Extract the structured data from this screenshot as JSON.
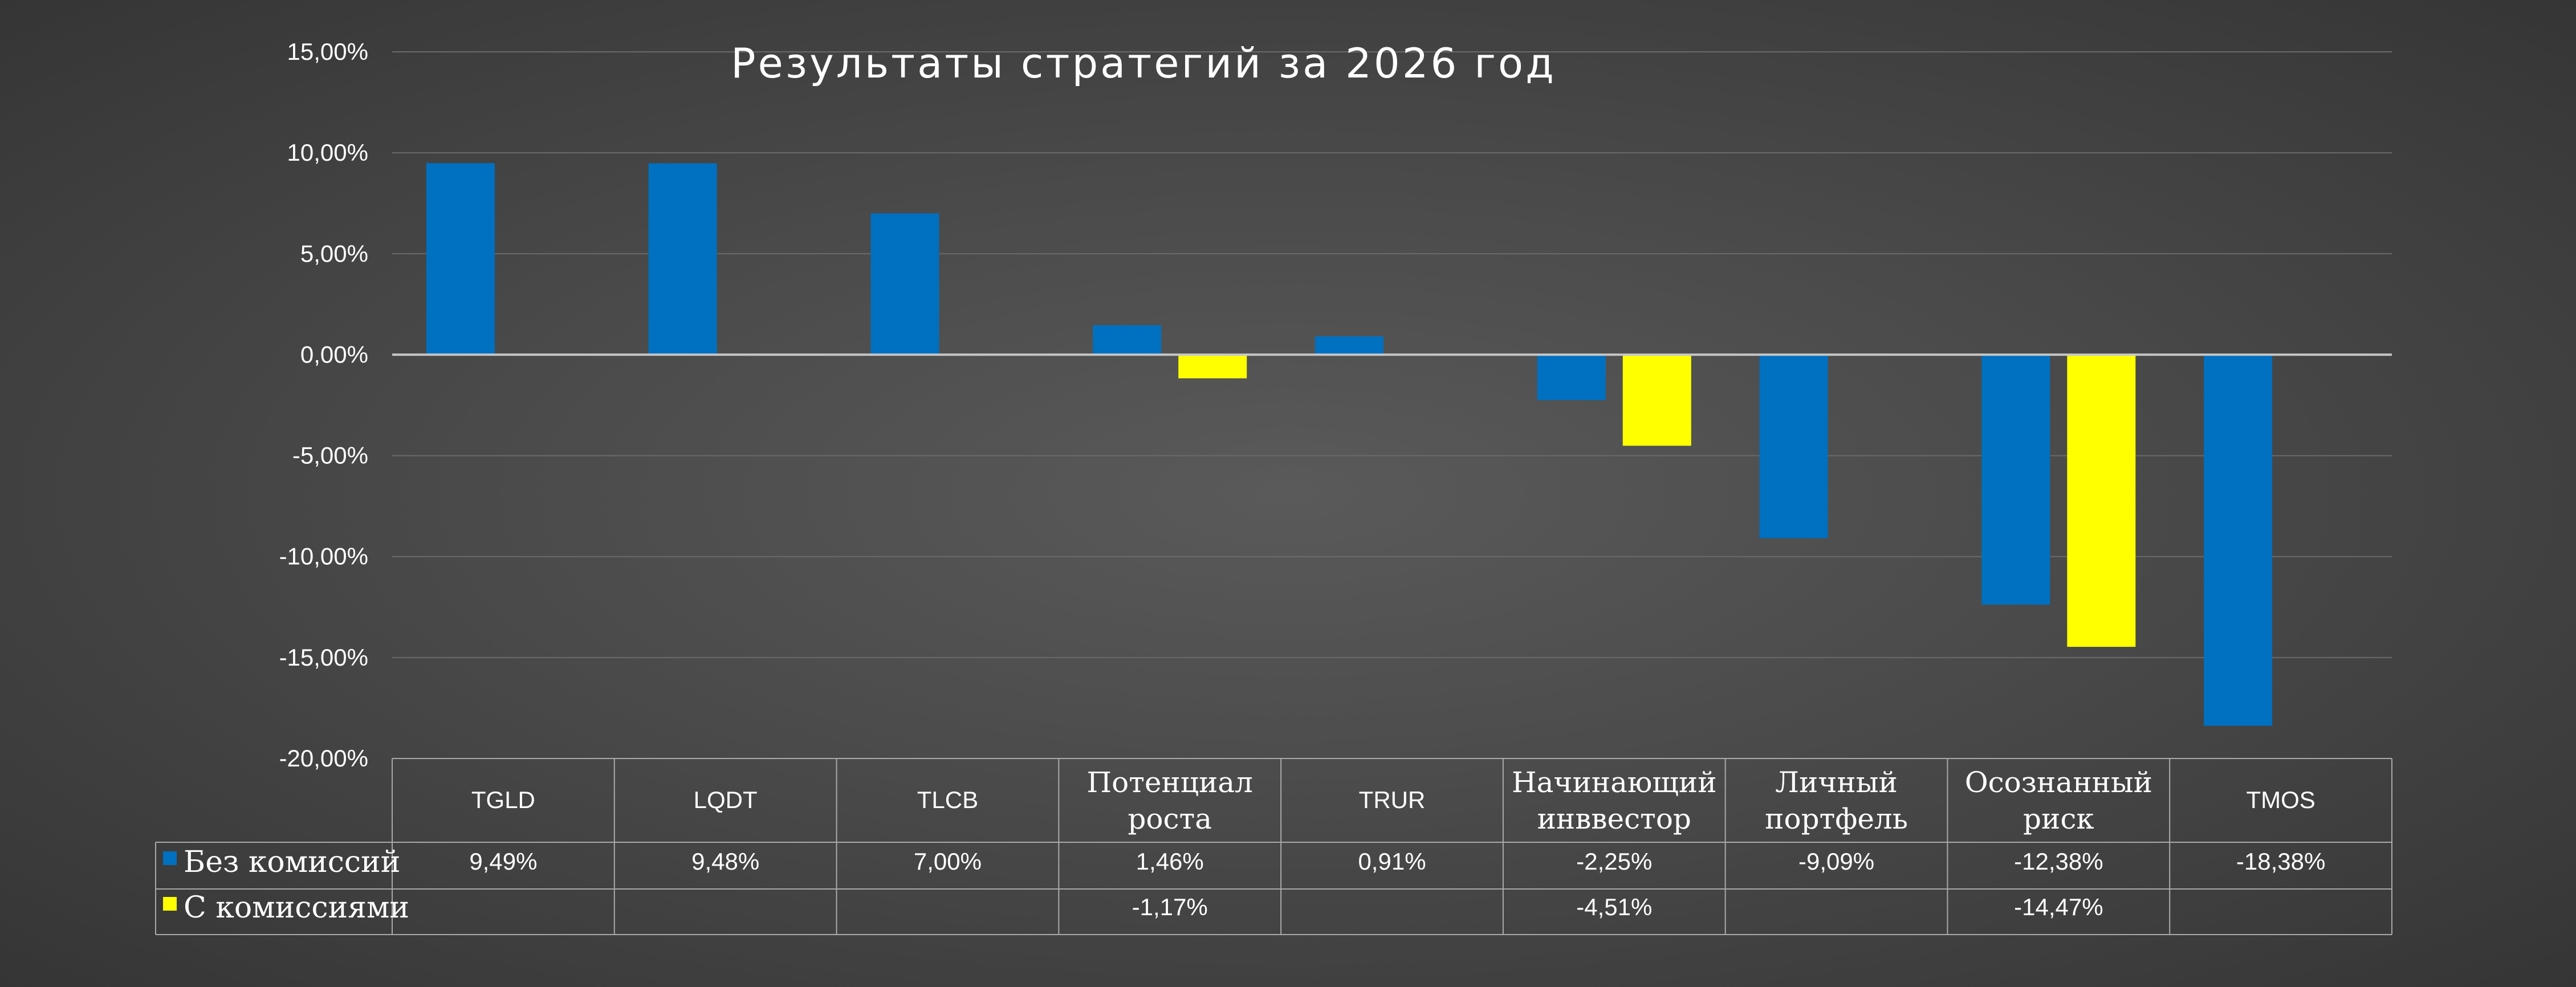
{
  "chart_data": {
    "type": "bar",
    "title": "Результаты стратегий за 2026 год",
    "xlabel": "",
    "ylabel": "",
    "ylim": [
      -20,
      15
    ],
    "yticks": [
      "15,00%",
      "10,00%",
      "5,00%",
      "0,00%",
      "-5,00%",
      "-10,00%",
      "-15,00%",
      "-20,00%"
    ],
    "grid": true,
    "legend": "bottom-left, in data table",
    "categories": [
      [
        "TGLD"
      ],
      [
        "LQDT"
      ],
      [
        "TLCB"
      ],
      [
        "Потенциал",
        "роста"
      ],
      [
        "TRUR"
      ],
      [
        "Начинающий",
        "инввестор"
      ],
      [
        "Личный",
        "портфель"
      ],
      [
        "Осознанный",
        "риск"
      ],
      [
        "TMOS"
      ]
    ],
    "series": [
      {
        "name": "Без комиссий",
        "color": "#0070C0",
        "values": [
          9.49,
          9.48,
          7.0,
          1.46,
          0.91,
          -2.25,
          -9.09,
          -12.38,
          -18.38
        ],
        "labels": [
          "9,49%",
          "9,48%",
          "7,00%",
          "1,46%",
          "0,91%",
          "-2,25%",
          "-9,09%",
          "-12,38%",
          "-18,38%"
        ]
      },
      {
        "name": "С комиссиями",
        "color": "#FFFF00",
        "values": [
          null,
          null,
          null,
          -1.17,
          null,
          -4.51,
          null,
          -14.47,
          null
        ],
        "labels": [
          "",
          "",
          "",
          "-1,17%",
          "",
          "-4,51%",
          "",
          "-14,47%",
          ""
        ]
      }
    ]
  }
}
